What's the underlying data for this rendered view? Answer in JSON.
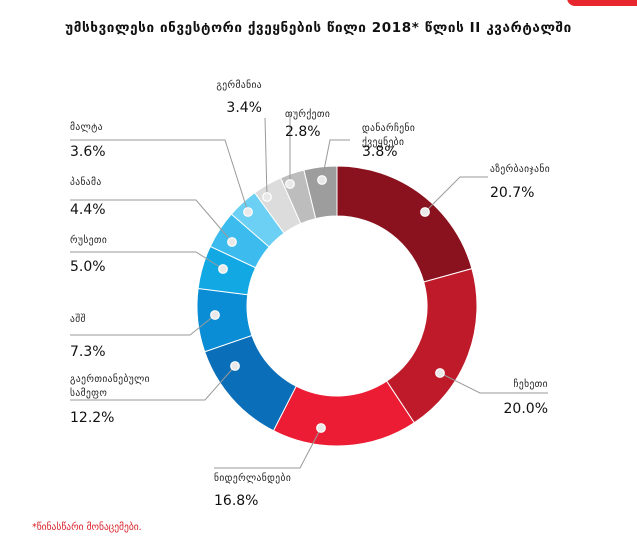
{
  "chart_data": {
    "type": "pie",
    "title": "უმსხვილესი ინვესტორი ქვეყნების წილი 2018* წლის II კვარტალში",
    "footnote": "*წინასწარი მონაცემები.",
    "slices": [
      {
        "name": "აზერბაიჯანი",
        "label": "20.7%",
        "value": 20.7,
        "color": "#8a111e"
      },
      {
        "name": "ჩეხეთი",
        "label": "20.0%",
        "value": 20.0,
        "color": "#be1a2a"
      },
      {
        "name": "ნიდერლანდები",
        "label": "16.8%",
        "value": 16.8,
        "color": "#ec1c34"
      },
      {
        "name": "გაერთიანებული სამეფო",
        "label": "12.2%",
        "value": 12.2,
        "color": "#0a6fb8"
      },
      {
        "name": "აშშ",
        "label": "7.3%",
        "value": 7.3,
        "color": "#0a8dd4"
      },
      {
        "name": "რუსეთი",
        "label": "5.0%",
        "value": 5.0,
        "color": "#12a8e4"
      },
      {
        "name": "პანამა",
        "label": "4.4%",
        "value": 4.4,
        "color": "#3cbcee"
      },
      {
        "name": "მალტა",
        "label": "3.6%",
        "value": 3.6,
        "color": "#6ccff4"
      },
      {
        "name": "გერმანია",
        "label": "3.4%",
        "value": 3.4,
        "color": "#dcdcdc"
      },
      {
        "name": "თურქეთი",
        "label": "2.8%",
        "value": 2.8,
        "color": "#bdbdbd"
      },
      {
        "name": "დანარჩენი ქვეყნები",
        "label": "3.8%",
        "value": 3.8,
        "color": "#9d9d9d"
      }
    ]
  }
}
